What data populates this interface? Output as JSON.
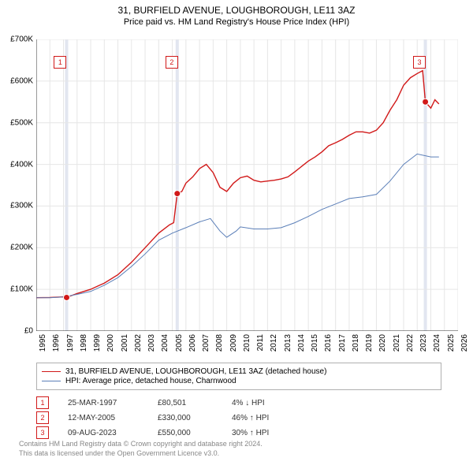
{
  "title": "31, BURFIELD AVENUE, LOUGHBOROUGH, LE11 3AZ",
  "subtitle": "Price paid vs. HM Land Registry's House Price Index (HPI)",
  "chart": {
    "type": "line",
    "background_color": "#ffffff",
    "grid_color": "#e6e6e6",
    "axis_color": "#333333",
    "font_size_labels": 10,
    "x": {
      "min": 1995,
      "max": 2026,
      "ticks": [
        1995,
        1996,
        1997,
        1998,
        1999,
        2000,
        2001,
        2002,
        2003,
        2004,
        2005,
        2006,
        2007,
        2008,
        2009,
        2010,
        2011,
        2012,
        2013,
        2014,
        2015,
        2016,
        2017,
        2018,
        2019,
        2020,
        2021,
        2022,
        2023,
        2024,
        2025,
        2026
      ]
    },
    "y": {
      "min": 0,
      "max": 700000,
      "ticks": [
        0,
        100000,
        200000,
        300000,
        400000,
        500000,
        600000,
        700000
      ],
      "tick_labels": [
        "£0",
        "£100K",
        "£200K",
        "£300K",
        "£400K",
        "£500K",
        "£600K",
        "£700K"
      ]
    },
    "vbands": [
      {
        "from": 1997.23,
        "color": "#e2e6f0"
      },
      {
        "from": 2005.36,
        "color": "#e2e6f0"
      },
      {
        "from": 2023.6,
        "color": "#e2e6f0"
      }
    ],
    "series": [
      {
        "name": "price_paid",
        "label": "31, BURFIELD AVENUE, LOUGHBOROUGH, LE11 3AZ (detached house)",
        "color": "#d11919",
        "width": 1.4,
        "data": [
          [
            1995.0,
            80000
          ],
          [
            1996.0,
            80500
          ],
          [
            1997.0,
            82000
          ],
          [
            1997.23,
            80501
          ],
          [
            1998.0,
            90000
          ],
          [
            1999.0,
            100000
          ],
          [
            2000.0,
            115000
          ],
          [
            2001.0,
            135000
          ],
          [
            2002.0,
            165000
          ],
          [
            2003.0,
            200000
          ],
          [
            2004.0,
            235000
          ],
          [
            2004.8,
            255000
          ],
          [
            2005.1,
            260000
          ],
          [
            2005.36,
            330000
          ],
          [
            2005.7,
            335000
          ],
          [
            2006.0,
            355000
          ],
          [
            2006.5,
            370000
          ],
          [
            2007.0,
            390000
          ],
          [
            2007.5,
            400000
          ],
          [
            2008.0,
            380000
          ],
          [
            2008.5,
            345000
          ],
          [
            2009.0,
            335000
          ],
          [
            2009.5,
            355000
          ],
          [
            2010.0,
            368000
          ],
          [
            2010.5,
            372000
          ],
          [
            2011.0,
            362000
          ],
          [
            2011.5,
            358000
          ],
          [
            2012.0,
            360000
          ],
          [
            2012.5,
            362000
          ],
          [
            2013.0,
            365000
          ],
          [
            2013.5,
            370000
          ],
          [
            2014.0,
            382000
          ],
          [
            2014.5,
            395000
          ],
          [
            2015.0,
            408000
          ],
          [
            2015.5,
            418000
          ],
          [
            2016.0,
            430000
          ],
          [
            2016.5,
            445000
          ],
          [
            2017.0,
            452000
          ],
          [
            2017.5,
            460000
          ],
          [
            2018.0,
            470000
          ],
          [
            2018.5,
            478000
          ],
          [
            2019.0,
            478000
          ],
          [
            2019.5,
            475000
          ],
          [
            2020.0,
            482000
          ],
          [
            2020.5,
            500000
          ],
          [
            2021.0,
            530000
          ],
          [
            2021.5,
            555000
          ],
          [
            2022.0,
            590000
          ],
          [
            2022.5,
            608000
          ],
          [
            2023.0,
            618000
          ],
          [
            2023.4,
            625000
          ],
          [
            2023.6,
            550000
          ],
          [
            2024.0,
            535000
          ],
          [
            2024.3,
            555000
          ],
          [
            2024.6,
            545000
          ]
        ]
      },
      {
        "name": "hpi",
        "label": "HPI: Average price, detached house, Charnwood",
        "color": "#5b7fb8",
        "width": 1.0,
        "data": [
          [
            1995.0,
            80000
          ],
          [
            1996.0,
            80000
          ],
          [
            1997.0,
            82000
          ],
          [
            1998.0,
            88000
          ],
          [
            1999.0,
            95000
          ],
          [
            2000.0,
            110000
          ],
          [
            2001.0,
            128000
          ],
          [
            2002.0,
            155000
          ],
          [
            2003.0,
            185000
          ],
          [
            2004.0,
            218000
          ],
          [
            2005.0,
            235000
          ],
          [
            2006.0,
            248000
          ],
          [
            2007.0,
            262000
          ],
          [
            2007.8,
            270000
          ],
          [
            2008.5,
            240000
          ],
          [
            2009.0,
            225000
          ],
          [
            2009.7,
            240000
          ],
          [
            2010.0,
            250000
          ],
          [
            2011.0,
            245000
          ],
          [
            2012.0,
            245000
          ],
          [
            2013.0,
            248000
          ],
          [
            2014.0,
            260000
          ],
          [
            2015.0,
            275000
          ],
          [
            2016.0,
            292000
          ],
          [
            2017.0,
            305000
          ],
          [
            2018.0,
            318000
          ],
          [
            2019.0,
            322000
          ],
          [
            2020.0,
            328000
          ],
          [
            2021.0,
            360000
          ],
          [
            2022.0,
            400000
          ],
          [
            2023.0,
            425000
          ],
          [
            2024.0,
            418000
          ],
          [
            2024.6,
            418000
          ]
        ]
      }
    ],
    "markers": [
      {
        "n": "1",
        "x": 1997.23,
        "y": 80501,
        "box_x": 1996.3,
        "box_y": 660000
      },
      {
        "n": "2",
        "x": 2005.36,
        "y": 330000,
        "box_x": 2004.5,
        "box_y": 660000
      },
      {
        "n": "3",
        "x": 2023.6,
        "y": 550000,
        "box_x": 2022.7,
        "box_y": 660000
      }
    ]
  },
  "legend": {
    "items": [
      {
        "color": "#d11919",
        "label": "31, BURFIELD AVENUE, LOUGHBOROUGH, LE11 3AZ (detached house)"
      },
      {
        "color": "#5b7fb8",
        "label": "HPI: Average price, detached house, Charnwood"
      }
    ]
  },
  "events": [
    {
      "n": "1",
      "date": "25-MAR-1997",
      "price": "£80,501",
      "pct": "4% ↓ HPI"
    },
    {
      "n": "2",
      "date": "12-MAY-2005",
      "price": "£330,000",
      "pct": "46% ↑ HPI"
    },
    {
      "n": "3",
      "date": "09-AUG-2023",
      "price": "£550,000",
      "pct": "30% ↑ HPI"
    }
  ],
  "footer": {
    "line1": "Contains HM Land Registry data © Crown copyright and database right 2024.",
    "line2": "This data is licensed under the Open Government Licence v3.0."
  }
}
